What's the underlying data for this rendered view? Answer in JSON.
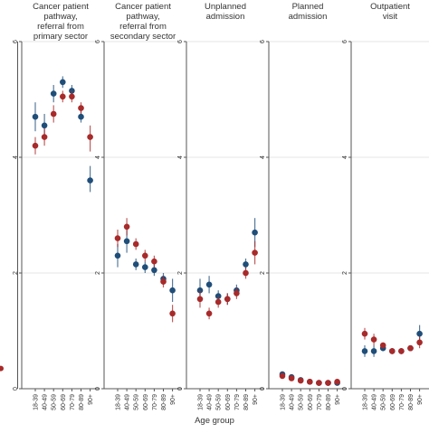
{
  "chart_data": {
    "type": "scatter",
    "xlabel": "Age group",
    "ylim": [
      0,
      6
    ],
    "yticks": [
      0,
      2,
      4,
      6
    ],
    "grid": true,
    "categories": [
      "18-39",
      "40-49",
      "50-59",
      "60-69",
      "70-79",
      "80-89",
      "90+"
    ],
    "colors": {
      "navy": "#1f4e79",
      "red": "#a82a2a",
      "grid": "#e4e4e4",
      "frame": "#555555",
      "errorbar": "#777777"
    },
    "partial_left_panel": {
      "red_point_y": 0.35
    },
    "panels": [
      {
        "title_lines": [
          "Cancer patient",
          "pathway,",
          "referral from",
          "primary sector"
        ],
        "series": [
          {
            "color": "navy",
            "values": [
              4.7,
              4.55,
              5.1,
              5.3,
              5.15,
              4.7,
              3.6
            ],
            "lower": [
              4.45,
              4.35,
              4.95,
              5.2,
              5.05,
              4.6,
              3.4
            ],
            "upper": [
              4.95,
              4.75,
              5.25,
              5.4,
              5.25,
              4.8,
              3.85
            ]
          },
          {
            "color": "red",
            "values": [
              4.2,
              4.35,
              4.75,
              5.05,
              5.05,
              4.85,
              4.35
            ],
            "lower": [
              4.05,
              4.2,
              4.6,
              4.95,
              4.95,
              4.75,
              4.1
            ],
            "upper": [
              4.35,
              4.5,
              4.9,
              5.15,
              5.15,
              4.95,
              4.55
            ]
          }
        ]
      },
      {
        "title_lines": [
          "Cancer patient",
          "pathway,",
          "referral from",
          "secondary sector"
        ],
        "series": [
          {
            "color": "navy",
            "values": [
              2.3,
              2.55,
              2.15,
              2.1,
              2.05,
              1.9,
              1.7
            ],
            "lower": [
              2.1,
              2.35,
              2.05,
              2.0,
              1.95,
              1.8,
              1.5
            ],
            "upper": [
              2.5,
              2.75,
              2.25,
              2.2,
              2.15,
              2.0,
              1.9
            ]
          },
          {
            "color": "red",
            "values": [
              2.6,
              2.8,
              2.5,
              2.3,
              2.2,
              1.85,
              1.3
            ],
            "lower": [
              2.45,
              2.65,
              2.4,
              2.2,
              2.1,
              1.75,
              1.15
            ],
            "upper": [
              2.75,
              2.95,
              2.6,
              2.4,
              2.3,
              1.95,
              1.45
            ]
          }
        ]
      },
      {
        "title_lines": [
          "Unplanned",
          "admission"
        ],
        "series": [
          {
            "color": "navy",
            "values": [
              1.7,
              1.8,
              1.6,
              1.55,
              1.7,
              2.15,
              2.7
            ],
            "lower": [
              1.5,
              1.65,
              1.5,
              1.45,
              1.6,
              2.05,
              2.45
            ],
            "upper": [
              1.9,
              1.95,
              1.7,
              1.65,
              1.8,
              2.25,
              2.95
            ]
          },
          {
            "color": "red",
            "values": [
              1.55,
              1.3,
              1.5,
              1.55,
              1.65,
              2.0,
              2.35
            ],
            "lower": [
              1.4,
              1.2,
              1.4,
              1.45,
              1.55,
              1.9,
              2.15
            ],
            "upper": [
              1.7,
              1.4,
              1.6,
              1.65,
              1.75,
              2.1,
              2.55
            ]
          }
        ]
      },
      {
        "title_lines": [
          "Planned",
          "admission"
        ],
        "series": [
          {
            "color": "navy",
            "values": [
              0.25,
              0.2,
              0.15,
              0.12,
              0.1,
              0.1,
              0.1
            ],
            "lower": [
              0.2,
              0.16,
              0.12,
              0.1,
              0.08,
              0.08,
              0.07
            ],
            "upper": [
              0.3,
              0.24,
              0.18,
              0.14,
              0.12,
              0.12,
              0.13
            ]
          },
          {
            "color": "red",
            "values": [
              0.22,
              0.18,
              0.14,
              0.12,
              0.1,
              0.1,
              0.12
            ],
            "lower": [
              0.18,
              0.15,
              0.11,
              0.1,
              0.08,
              0.08,
              0.09
            ],
            "upper": [
              0.26,
              0.21,
              0.17,
              0.14,
              0.12,
              0.12,
              0.15
            ]
          }
        ]
      },
      {
        "title_lines": [
          "Outpatient",
          "visit"
        ],
        "series": [
          {
            "color": "navy",
            "values": [
              0.65,
              0.65,
              0.7,
              0.65,
              0.65,
              0.7,
              0.95
            ],
            "lower": [
              0.55,
              0.55,
              0.65,
              0.6,
              0.6,
              0.65,
              0.8
            ],
            "upper": [
              0.75,
              0.75,
              0.75,
              0.7,
              0.7,
              0.75,
              1.1
            ]
          },
          {
            "color": "red",
            "values": [
              0.95,
              0.85,
              0.75,
              0.65,
              0.65,
              0.7,
              0.8
            ],
            "lower": [
              0.85,
              0.75,
              0.7,
              0.6,
              0.6,
              0.65,
              0.7
            ],
            "upper": [
              1.05,
              0.95,
              0.8,
              0.7,
              0.7,
              0.75,
              0.9
            ]
          }
        ]
      }
    ]
  }
}
